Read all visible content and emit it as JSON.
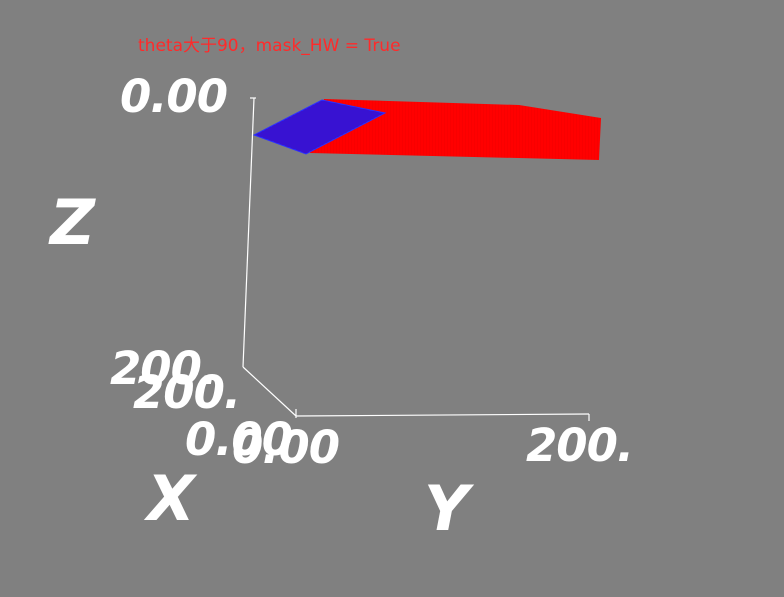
{
  "title": "theta大于90，mask_HW = True",
  "axes": {
    "x": {
      "label": "X",
      "tick_start": "0.00",
      "tick_end": "200."
    },
    "y": {
      "label": "Y",
      "tick_start": "0.00",
      "tick_end": "200."
    },
    "z": {
      "label": "Z",
      "tick_top": "0.00",
      "tick_bottom": "200."
    }
  },
  "colors": {
    "background": "#808080",
    "axis_lines": "#ffffff",
    "red_surface": "#ff0000",
    "blue_surface": "#3a00c8",
    "title": "#ff2a2a"
  }
}
